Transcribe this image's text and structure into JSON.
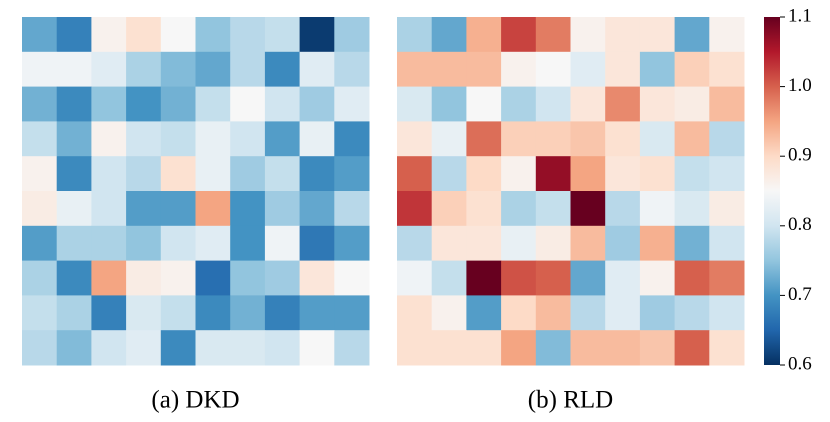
{
  "chart_data": {
    "type": "heatmap",
    "colormap": "RdBu_r",
    "clim": [
      0.6,
      1.1
    ],
    "cticks": [
      0.6,
      0.7,
      0.8,
      0.9,
      {
        "value": 1,
        "label": "1.0"
      },
      1.1
    ],
    "panels": [
      {
        "caption": "(a) DKD",
        "values": [
          [
            0.72,
            0.68,
            0.86,
            0.89,
            0.85,
            0.75,
            0.78,
            0.79,
            0.61,
            0.76
          ],
          [
            0.84,
            0.84,
            0.82,
            0.77,
            0.74,
            0.72,
            0.78,
            0.69,
            0.82,
            0.78
          ],
          [
            0.73,
            0.69,
            0.75,
            0.7,
            0.73,
            0.79,
            0.85,
            0.8,
            0.76,
            0.82
          ],
          [
            0.79,
            0.73,
            0.86,
            0.8,
            0.79,
            0.83,
            0.8,
            0.71,
            0.83,
            0.69
          ],
          [
            0.86,
            0.69,
            0.8,
            0.78,
            0.89,
            0.83,
            0.76,
            0.79,
            0.69,
            0.71
          ],
          [
            0.87,
            0.83,
            0.8,
            0.71,
            0.71,
            0.95,
            0.7,
            0.76,
            0.72,
            0.78
          ],
          [
            0.71,
            0.77,
            0.77,
            0.75,
            0.8,
            0.82,
            0.7,
            0.84,
            0.67,
            0.71
          ],
          [
            0.77,
            0.69,
            0.95,
            0.87,
            0.86,
            0.66,
            0.75,
            0.76,
            0.88,
            0.85
          ],
          [
            0.79,
            0.77,
            0.68,
            0.81,
            0.79,
            0.69,
            0.73,
            0.68,
            0.71,
            0.71
          ],
          [
            0.78,
            0.74,
            0.8,
            0.82,
            0.69,
            0.81,
            0.81,
            0.8,
            0.85,
            0.78
          ]
        ]
      },
      {
        "caption": "(b) RLD",
        "values": [
          [
            0.77,
            0.72,
            0.94,
            1.02,
            0.98,
            0.86,
            0.88,
            0.88,
            0.72,
            0.86
          ],
          [
            0.93,
            0.93,
            0.93,
            0.86,
            0.85,
            0.82,
            0.88,
            0.75,
            0.91,
            0.89
          ],
          [
            0.81,
            0.75,
            0.85,
            0.77,
            0.8,
            0.88,
            0.97,
            0.88,
            0.87,
            0.93
          ],
          [
            0.88,
            0.83,
            0.99,
            0.91,
            0.91,
            0.92,
            0.89,
            0.81,
            0.93,
            0.78
          ],
          [
            1.0,
            0.78,
            0.9,
            0.86,
            1.07,
            0.95,
            0.88,
            0.89,
            0.79,
            0.8
          ],
          [
            1.03,
            0.91,
            0.89,
            0.77,
            0.79,
            1.1,
            0.78,
            0.84,
            0.81,
            0.87
          ],
          [
            0.78,
            0.88,
            0.88,
            0.83,
            0.87,
            0.93,
            0.76,
            0.94,
            0.73,
            0.8
          ],
          [
            0.84,
            0.79,
            1.1,
            1.01,
            1.0,
            0.72,
            0.82,
            0.86,
            1.0,
            0.98
          ],
          [
            0.89,
            0.86,
            0.71,
            0.9,
            0.93,
            0.78,
            0.82,
            0.76,
            0.78,
            0.8
          ],
          [
            0.89,
            0.89,
            0.89,
            0.95,
            0.74,
            0.93,
            0.93,
            0.92,
            1.0,
            0.89
          ]
        ]
      }
    ]
  }
}
